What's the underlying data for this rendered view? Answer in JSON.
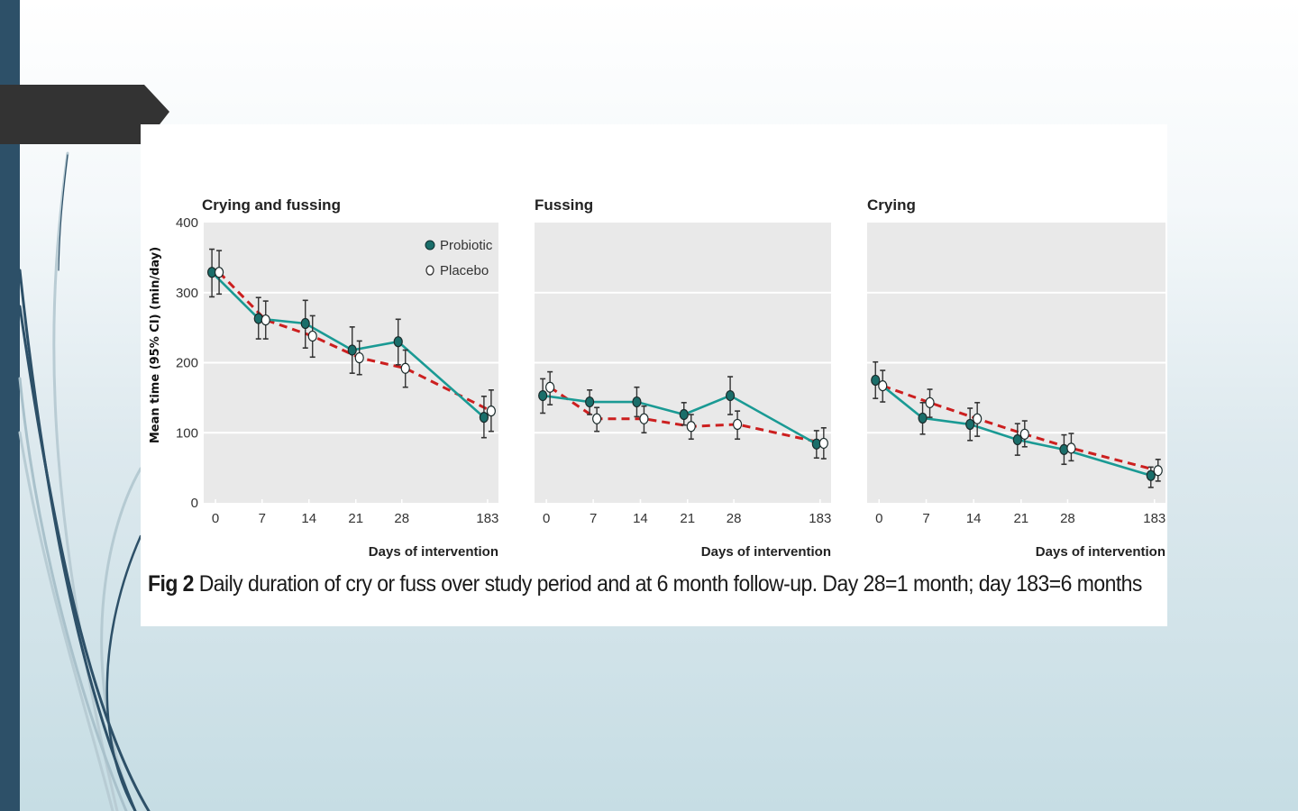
{
  "slide": {
    "colors": {
      "left_bar": "#2d5068",
      "title_tab": "#333333",
      "probiotic": "#1a9a94",
      "placebo": "#cc1f1f",
      "plot_bg": "#e9e9e9"
    }
  },
  "caption": {
    "label": "Fig 2",
    "text": " Daily duration of cry or fuss over study period and at 6 month follow-up. Day 28=1 month; day 183=6 months"
  },
  "chart_data": [
    {
      "type": "line",
      "title": "Crying and fussing",
      "xlabel": "Days of intervention",
      "ylabel": "Mean time (95% CI) (min/day)",
      "categories": [
        "0",
        "7",
        "14",
        "21",
        "28",
        "183"
      ],
      "ylim": [
        0,
        400
      ],
      "yticks": [
        "0",
        "100",
        "200",
        "300",
        "400"
      ],
      "grid": true,
      "legend": {
        "placement": "top-right",
        "entries": [
          "Probiotic",
          "Placebo"
        ]
      },
      "series": [
        {
          "name": "Probiotic",
          "values": [
            329,
            263,
            256,
            218,
            230,
            122
          ],
          "ci_low": [
            294,
            234,
            221,
            185,
            197,
            93
          ],
          "ci_high": [
            362,
            293,
            289,
            251,
            262,
            152
          ]
        },
        {
          "name": "Placebo",
          "values": [
            329,
            261,
            238,
            207,
            192,
            131
          ],
          "ci_low": [
            298,
            234,
            208,
            183,
            165,
            102
          ],
          "ci_high": [
            360,
            288,
            267,
            231,
            218,
            161
          ]
        }
      ]
    },
    {
      "type": "line",
      "title": "Fussing",
      "xlabel": "Days of intervention",
      "ylabel": "",
      "categories": [
        "0",
        "7",
        "14",
        "21",
        "28",
        "183"
      ],
      "ylim": [
        0,
        400
      ],
      "grid": true,
      "series": [
        {
          "name": "Probiotic",
          "values": [
            153,
            144,
            144,
            126,
            153,
            84
          ],
          "ci_low": [
            128,
            126,
            123,
            111,
            126,
            64
          ],
          "ci_high": [
            177,
            161,
            165,
            143,
            180,
            103
          ]
        },
        {
          "name": "Placebo",
          "values": [
            165,
            120,
            120,
            109,
            112,
            85
          ],
          "ci_low": [
            140,
            102,
            100,
            91,
            91,
            63
          ],
          "ci_high": [
            187,
            136,
            138,
            126,
            131,
            107
          ]
        }
      ]
    },
    {
      "type": "line",
      "title": "Crying",
      "xlabel": "Days of intervention",
      "ylabel": "",
      "categories": [
        "0",
        "7",
        "14",
        "21",
        "28",
        "183"
      ],
      "ylim": [
        0,
        400
      ],
      "grid": true,
      "series": [
        {
          "name": "Probiotic",
          "values": [
            175,
            121,
            112,
            90,
            76,
            39
          ],
          "ci_low": [
            149,
            98,
            89,
            68,
            55,
            22
          ],
          "ci_high": [
            201,
            143,
            135,
            113,
            97,
            51
          ]
        },
        {
          "name": "Placebo",
          "values": [
            167,
            143,
            120,
            98,
            78,
            46
          ],
          "ci_low": [
            144,
            122,
            95,
            80,
            60,
            31
          ],
          "ci_high": [
            189,
            162,
            143,
            117,
            99,
            62
          ]
        }
      ]
    }
  ]
}
